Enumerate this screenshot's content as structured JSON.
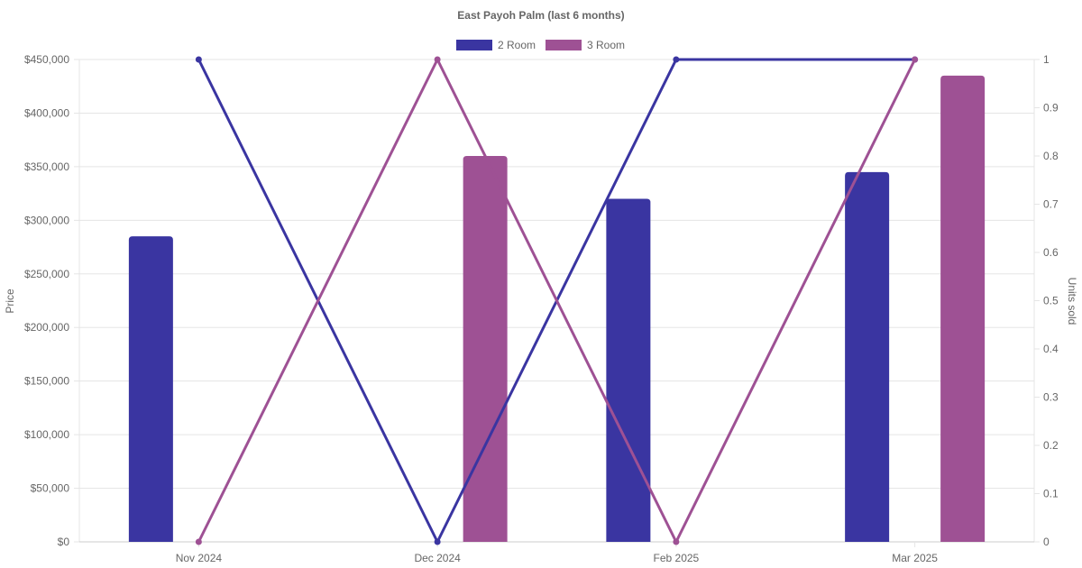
{
  "chart_data": {
    "type": "bar",
    "title": "East Payoh Palm (last 6 months)",
    "categories": [
      "Nov 2024",
      "Dec 2024",
      "Feb 2025",
      "Mar 2025"
    ],
    "y_left": {
      "label": "Price",
      "ylim": [
        0,
        450000
      ],
      "ticks": [
        "$0",
        "$50,000",
        "$100,000",
        "$150,000",
        "$200,000",
        "$250,000",
        "$300,000",
        "$350,000",
        "$400,000",
        "$450,000"
      ]
    },
    "y_right": {
      "label": "Units sold",
      "ylim": [
        0,
        1
      ],
      "ticks": [
        "0",
        "0.1",
        "0.2",
        "0.3",
        "0.4",
        "0.5",
        "0.6",
        "0.7",
        "0.8",
        "0.9",
        "1"
      ]
    },
    "series": [
      {
        "name": "2 Room",
        "color": "#3a35a1",
        "price": [
          285000,
          null,
          320000,
          345000
        ],
        "units": [
          1,
          0,
          1,
          1
        ]
      },
      {
        "name": "3 Room",
        "color": "#9e5194",
        "price": [
          null,
          360000,
          null,
          435000
        ],
        "units": [
          0,
          1,
          0,
          1
        ]
      }
    ],
    "grid": true,
    "legend_position": "top"
  }
}
